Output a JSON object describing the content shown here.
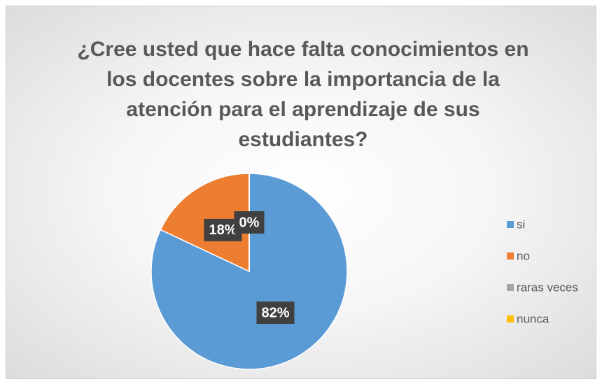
{
  "chart_data": {
    "type": "pie",
    "title": "¿Cree usted que hace falta conocimientos en los docentes sobre la importancia de la atención para el aprendizaje de sus estudiantes?",
    "categories": [
      "si",
      "no",
      "raras veces",
      "nunca"
    ],
    "values": [
      82,
      18,
      0,
      0
    ],
    "value_labels": [
      "82%",
      "18%",
      "0%",
      "0%"
    ],
    "colors": [
      "#5b9bd5",
      "#ed7d31",
      "#a5a5a5",
      "#ffc000"
    ],
    "legend": "right"
  }
}
